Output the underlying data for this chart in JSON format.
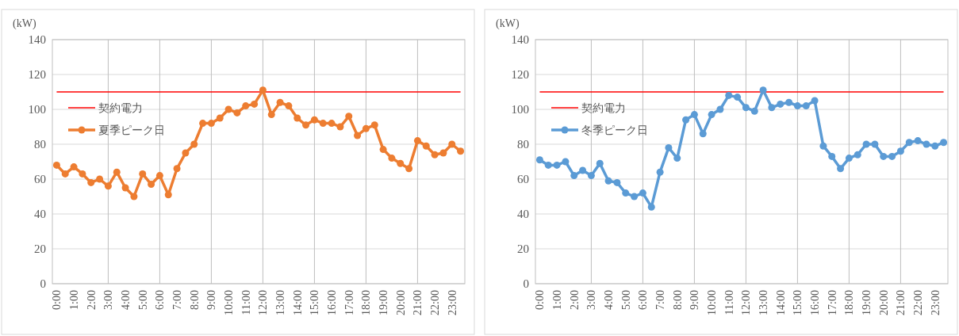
{
  "chart_data": [
    {
      "type": "line",
      "ylabel": "(kW)",
      "categories": [
        "0:00",
        null,
        "1:00",
        null,
        "2:00",
        null,
        "3:00",
        null,
        "4:00",
        null,
        "5:00",
        null,
        "6:00",
        null,
        "7:00",
        null,
        "8:00",
        null,
        "9:00",
        null,
        "10:00",
        null,
        "11:00",
        null,
        "12:00",
        null,
        "13:00",
        null,
        "14:00",
        null,
        "15:00",
        null,
        "16:00",
        null,
        "17:00",
        null,
        "18:00",
        null,
        "19:00",
        null,
        "20:00",
        null,
        "21:00",
        null,
        "22:00",
        null,
        "23:00",
        null
      ],
      "series": [
        {
          "name": "夏季ピーク日",
          "color": "#ed7d31",
          "values": [
            68,
            63,
            67,
            63,
            58,
            60,
            56,
            64,
            55,
            50,
            63,
            57,
            62,
            51,
            66,
            75,
            80,
            92,
            92,
            95,
            100,
            98,
            102,
            103,
            111,
            97,
            104,
            102,
            95,
            91,
            94,
            92,
            92,
            90,
            96,
            85,
            89,
            91,
            77,
            72,
            69,
            66,
            82,
            79,
            74,
            75,
            80,
            76
          ]
        }
      ],
      "ref_lines": [
        {
          "axis": "y",
          "value": 110,
          "label": "契約電力",
          "color": "#ff0000"
        }
      ],
      "ylim": [
        0,
        140
      ],
      "yticks": [
        0,
        20,
        40,
        60,
        80,
        100,
        120,
        140
      ],
      "grid": true,
      "legend": "top left",
      "marker": "circle",
      "line_style": "solid"
    },
    {
      "type": "line",
      "ylabel": "(kW)",
      "categories": [
        "0:00",
        null,
        "1:00",
        null,
        "2:00",
        null,
        "3:00",
        null,
        "4:00",
        null,
        "5:00",
        null,
        "6:00",
        null,
        "7:00",
        null,
        "8:00",
        null,
        "9:00",
        null,
        "10:00",
        null,
        "11:00",
        null,
        "12:00",
        null,
        "13:00",
        null,
        "14:00",
        null,
        "15:00",
        null,
        "16:00",
        null,
        "17:00",
        null,
        "18:00",
        null,
        "19:00",
        null,
        "20:00",
        null,
        "21:00",
        null,
        "22:00",
        null,
        "23:00",
        null
      ],
      "series": [
        {
          "name": "冬季ピーク日",
          "color": "#5b9bd5",
          "values": [
            71,
            68,
            68,
            70,
            62,
            65,
            62,
            69,
            59,
            58,
            52,
            50,
            52,
            44,
            64,
            78,
            72,
            94,
            97,
            86,
            97,
            100,
            108,
            107,
            101,
            99,
            111,
            101,
            103,
            104,
            102,
            102,
            105,
            79,
            73,
            66,
            72,
            74,
            80,
            80,
            73,
            73,
            76,
            81,
            82,
            80,
            79,
            81
          ]
        }
      ],
      "ref_lines": [
        {
          "axis": "y",
          "value": 110,
          "label": "契約電力",
          "color": "#ff0000"
        }
      ],
      "ylim": [
        0,
        140
      ],
      "yticks": [
        0,
        20,
        40,
        60,
        80,
        100,
        120,
        140
      ],
      "grid": true,
      "legend": "top left",
      "marker": "circle",
      "line_style": "solid"
    }
  ]
}
